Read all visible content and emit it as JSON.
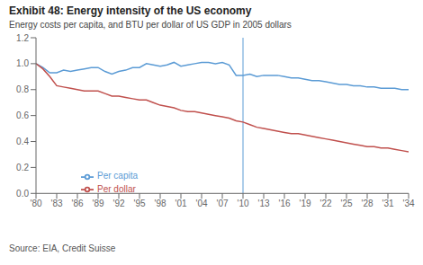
{
  "chart_data": {
    "type": "line",
    "title": "Exhibit 48: Energy intensity of the US economy",
    "subtitle": "Energy costs per capita, and BTU per dollar of US GDP in 2005 dollars",
    "annotations": [
      "Source: EIA, Credit Suisse"
    ],
    "x": [
      1980,
      1981,
      1982,
      1983,
      1984,
      1985,
      1986,
      1987,
      1988,
      1989,
      1990,
      1991,
      1992,
      1993,
      1994,
      1995,
      1996,
      1997,
      1998,
      1999,
      2000,
      2001,
      2002,
      2003,
      2004,
      2005,
      2006,
      2007,
      2008,
      2009,
      2010,
      2011,
      2012,
      2013,
      2014,
      2015,
      2016,
      2017,
      2018,
      2019,
      2020,
      2021,
      2022,
      2023,
      2024,
      2025,
      2026,
      2027,
      2028,
      2029,
      2030,
      2031,
      2032,
      2033,
      2034
    ],
    "series": [
      {
        "name": "Per capita",
        "color": "#5b9bd5",
        "values": [
          1.0,
          0.97,
          0.93,
          0.93,
          0.95,
          0.94,
          0.95,
          0.96,
          0.97,
          0.97,
          0.94,
          0.92,
          0.94,
          0.95,
          0.97,
          0.97,
          1.0,
          0.99,
          0.98,
          0.99,
          1.01,
          0.98,
          0.99,
          1.0,
          1.01,
          1.01,
          1.0,
          1.01,
          0.99,
          0.91,
          0.91,
          0.92,
          0.9,
          0.91,
          0.91,
          0.91,
          0.9,
          0.89,
          0.89,
          0.88,
          0.87,
          0.87,
          0.86,
          0.85,
          0.84,
          0.84,
          0.83,
          0.83,
          0.82,
          0.82,
          0.81,
          0.81,
          0.81,
          0.8,
          0.8
        ]
      },
      {
        "name": "Per dollar",
        "color": "#c0504d",
        "values": [
          1.0,
          0.96,
          0.9,
          0.83,
          0.82,
          0.81,
          0.8,
          0.79,
          0.79,
          0.79,
          0.77,
          0.75,
          0.75,
          0.74,
          0.73,
          0.72,
          0.72,
          0.7,
          0.68,
          0.67,
          0.66,
          0.64,
          0.63,
          0.63,
          0.62,
          0.61,
          0.6,
          0.59,
          0.58,
          0.56,
          0.55,
          0.53,
          0.51,
          0.5,
          0.49,
          0.48,
          0.47,
          0.46,
          0.46,
          0.45,
          0.44,
          0.43,
          0.42,
          0.41,
          0.4,
          0.39,
          0.38,
          0.37,
          0.36,
          0.36,
          0.35,
          0.35,
          0.34,
          0.33,
          0.32
        ]
      }
    ],
    "vertical_line": {
      "x": 2010,
      "color": "#5b9bd5"
    },
    "xlim": [
      1980,
      2034
    ],
    "xticks": [
      {
        "value": 1980,
        "label": "'80"
      },
      {
        "value": 1983,
        "label": "'83"
      },
      {
        "value": 1986,
        "label": "'86"
      },
      {
        "value": 1989,
        "label": "'89"
      },
      {
        "value": 1992,
        "label": "'92"
      },
      {
        "value": 1995,
        "label": "'95"
      },
      {
        "value": 1998,
        "label": "'98"
      },
      {
        "value": 2001,
        "label": "'01"
      },
      {
        "value": 2004,
        "label": "'04"
      },
      {
        "value": 2007,
        "label": "'07"
      },
      {
        "value": 2010,
        "label": "'10"
      },
      {
        "value": 2013,
        "label": "'13"
      },
      {
        "value": 2016,
        "label": "'16"
      },
      {
        "value": 2019,
        "label": "'19"
      },
      {
        "value": 2022,
        "label": "'22"
      },
      {
        "value": 2025,
        "label": "'25"
      },
      {
        "value": 2028,
        "label": "'28"
      },
      {
        "value": 2031,
        "label": "'31"
      },
      {
        "value": 2034,
        "label": "'34"
      }
    ],
    "ylim": [
      0.0,
      1.2
    ],
    "yticks": [
      {
        "value": 0,
        "label": "0.0"
      },
      0.2,
      0.4,
      0.6,
      0.8,
      {
        "value": 1,
        "label": "1.0"
      },
      1.2
    ],
    "grid": false,
    "legend": "lower left"
  }
}
